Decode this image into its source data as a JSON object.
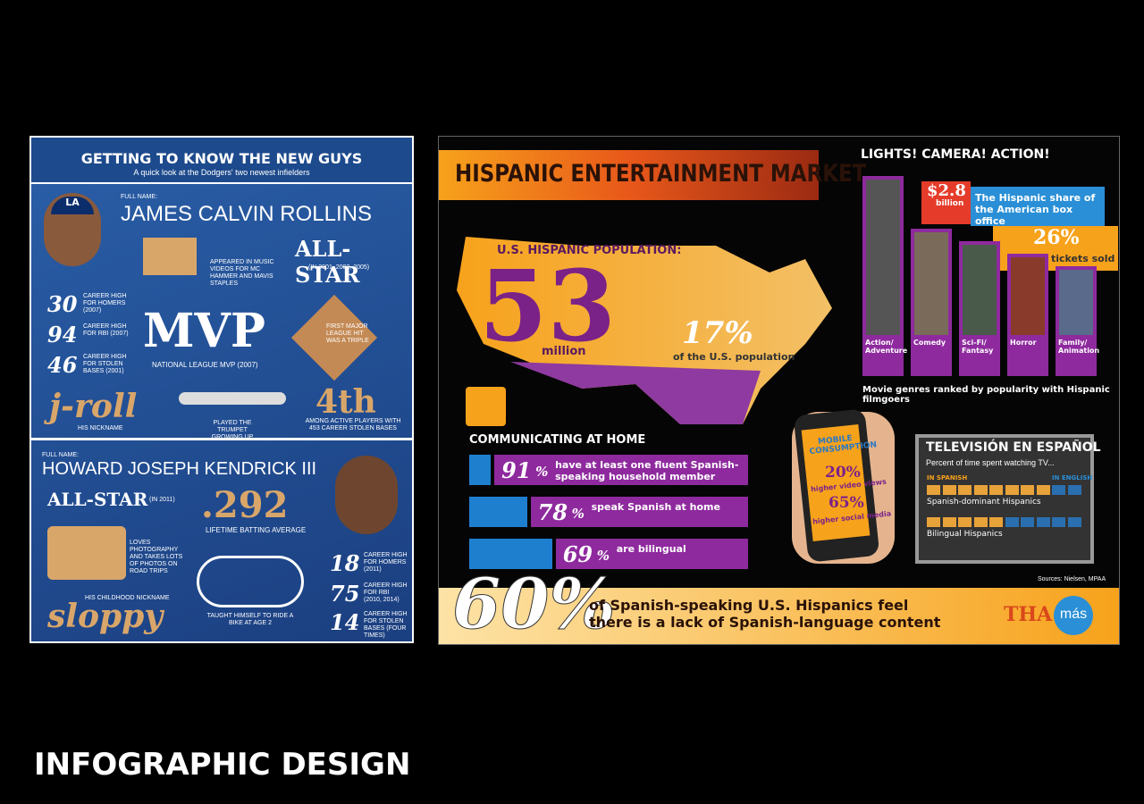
{
  "footer": "INFOGRAPHIC DESIGN",
  "dodgers": {
    "title": "GETTING TO KNOW THE NEW GUYS",
    "subtitle": "A quick look at the Dodgers' two newest infielders",
    "logo": "LA",
    "full_name_label": "FULL NAME:",
    "rollins": {
      "name": "JAMES CALVIN ROLLINS",
      "stats": [
        {
          "number": "30",
          "text": "CAREER HIGH FOR HOMERS (2007)"
        },
        {
          "number": "94",
          "text": "CAREER HIGH FOR RBI (2007)"
        },
        {
          "number": "46",
          "text": "CAREER HIGH FOR STOLEN BASES (2001)"
        }
      ],
      "music": "APPEARED IN MUSIC VIDEOS FOR MC HAMMER AND MAVIS STAPLES",
      "allstar": "ALL-STAR",
      "allstar_years": "(IN 2001, 2002, 2005)",
      "mvp": "MVP",
      "mvp_text": "NATIONAL LEAGUE MVP (2007)",
      "first_hit": "FIRST MAJOR LEAGUE HIT WAS A TRIPLE",
      "nickname": "j-roll",
      "nickname_text": "HIS NICKNAME",
      "trumpet": "PLAYED THE TRUMPET GROWING UP",
      "rank": "4th",
      "rank_text": "AMONG ACTIVE PLAYERS WITH 453 CAREER STOLEN BASES"
    },
    "kendrick": {
      "name": "HOWARD JOSEPH KENDRICK III",
      "allstar": "ALL-STAR",
      "allstar_years": "(IN 2011)",
      "average": ".292",
      "average_text": "LIFETIME BATTING AVERAGE",
      "photo": "LOVES PHOTOGRAPHY AND TAKES LOTS OF PHOTOS ON ROAD TRIPS",
      "nickname_text": "HIS CHILDHOOD NICKNAME",
      "nickname": "sloppy",
      "bike": "TAUGHT HIMSELF TO RIDE A BIKE AT AGE 2",
      "stats": [
        {
          "number": "18",
          "text": "CAREER HIGH FOR HOMERS (2011)"
        },
        {
          "number": "75",
          "text": "CAREER HIGH FOR RBI (2010, 2014)"
        },
        {
          "number": "14",
          "text": "CAREER HIGH FOR STOLEN BASES (FOUR TIMES)"
        }
      ]
    }
  },
  "hispanic": {
    "title": "HISPANIC ENTERTAINMENT MARKET",
    "population_label": "U.S. HISPANIC POPULATION:",
    "population": "53",
    "population_unit": "million",
    "share": "17%",
    "share_text": "of the U.S. population",
    "home_title": "COMMUNICATING AT HOME",
    "percent_sign": "%",
    "home_bars": [
      {
        "value": 91,
        "text": "have at least one fluent Spanish-speaking household member"
      },
      {
        "value": 78,
        "text": "speak Spanish at home"
      },
      {
        "value": 69,
        "text": "are bilingual"
      }
    ],
    "movies_title": "LIGHTS! CAMERA! ACTION!",
    "box_office": "$2.8",
    "box_office_unit": "billion",
    "box_office_text": "The Hispanic share of the American box office",
    "tickets": "26%",
    "tickets_text": "of all tickets sold",
    "genres": [
      "Action/ Adventure",
      "Comedy",
      "Sci-Fi/ Fantasy",
      "Horror",
      "Family/ Animation"
    ],
    "genres_caption": "Movie genres ranked by popularity with Hispanic filmgoers",
    "mobile": {
      "title": "MOBILE CONSUMPTION",
      "video": "20%",
      "video_text": "higher video views",
      "social": "65%",
      "social_text": "higher social media"
    },
    "tv": {
      "title": "TELEVISIÓN EN ESPAÑOL",
      "subtitle": "Percent of time spent watching TV...",
      "spanish_label": "IN SPANISH",
      "english_label": "IN ENGLISH",
      "rows": [
        {
          "name": "Spanish-dominant Hispanics",
          "spanish": 8,
          "english": 2
        },
        {
          "name": "Bilingual Hispanics",
          "spanish": 5,
          "english": 5
        }
      ]
    },
    "sources": "Sources: Nielsen, MPAA",
    "lack": "60%",
    "lack_text": "of Spanish-speaking U.S. Hispanics feel there is a lack of Spanish-language content",
    "brand": "THA",
    "brand_accent": "más"
  }
}
